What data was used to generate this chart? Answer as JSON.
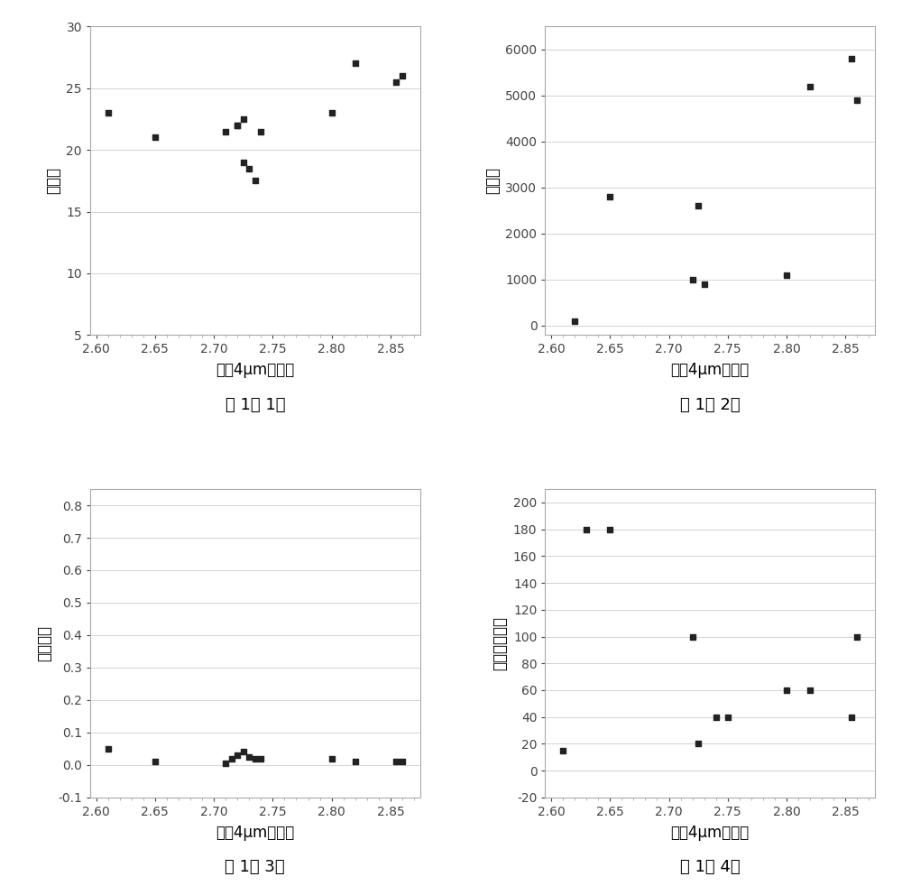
{
  "plot1": {
    "x": [
      2.61,
      2.65,
      2.71,
      2.72,
      2.725,
      2.73,
      2.735,
      2.74,
      2.72,
      2.725,
      2.8,
      2.82,
      2.855,
      2.86
    ],
    "y": [
      23.0,
      21.0,
      21.5,
      22.0,
      19.0,
      18.5,
      17.5,
      21.5,
      22.0,
      22.5,
      23.0,
      27.0,
      25.5,
      26.0
    ],
    "xlabel": "小于4μm分维数",
    "ylabel": "孔隙度",
    "caption": "图 1（ 1）",
    "xlim": [
      2.595,
      2.875
    ],
    "ylim": [
      5,
      30
    ],
    "yticks": [
      5,
      10,
      15,
      20,
      25,
      30
    ],
    "xticks": [
      2.6,
      2.65,
      2.7,
      2.75,
      2.8,
      2.85
    ]
  },
  "plot2": {
    "x": [
      2.62,
      2.65,
      2.72,
      2.725,
      2.73,
      2.8,
      2.82,
      2.855,
      2.86
    ],
    "y": [
      100,
      2800,
      1000,
      2600,
      900,
      1100,
      5200,
      5800,
      4900
    ],
    "xlabel": "小于4μm分维数",
    "ylabel": "渗透率",
    "caption": "图 1（ 2）",
    "xlim": [
      2.595,
      2.875
    ],
    "ylim": [
      -200,
      6500
    ],
    "yticks": [
      0,
      1000,
      2000,
      3000,
      4000,
      5000,
      6000
    ],
    "xticks": [
      2.6,
      2.65,
      2.7,
      2.75,
      2.8,
      2.85
    ]
  },
  "plot3": {
    "x": [
      2.61,
      2.65,
      2.71,
      2.715,
      2.72,
      2.725,
      2.73,
      2.735,
      2.74,
      2.8,
      2.82,
      2.855,
      2.86
    ],
    "y": [
      0.05,
      0.01,
      0.005,
      0.02,
      0.03,
      0.04,
      0.025,
      0.02,
      0.02,
      0.02,
      0.01,
      0.01,
      0.01
    ],
    "xlabel": "小于4μm分维数",
    "ylabel": "门槛压力",
    "caption": "图 1（ 3）",
    "xlim": [
      2.595,
      2.875
    ],
    "ylim": [
      -0.1,
      0.85
    ],
    "yticks": [
      -0.1,
      0.0,
      0.1,
      0.2,
      0.3,
      0.4,
      0.5,
      0.6,
      0.7,
      0.8
    ],
    "xticks": [
      2.6,
      2.65,
      2.7,
      2.75,
      2.8,
      2.85
    ]
  },
  "plot4": {
    "x": [
      2.61,
      2.63,
      2.65,
      2.72,
      2.725,
      2.74,
      2.75,
      2.8,
      2.82,
      2.855,
      2.86
    ],
    "y": [
      15,
      180,
      180,
      100,
      20,
      40,
      40,
      60,
      60,
      40,
      100
    ],
    "xlabel": "小于4μm分维数",
    "ylabel": "最大孔隙半径",
    "caption": "图 1（ 4）",
    "xlim": [
      2.595,
      2.875
    ],
    "ylim": [
      -20,
      210
    ],
    "yticks": [
      -20,
      0,
      20,
      40,
      60,
      80,
      100,
      120,
      140,
      160,
      180,
      200
    ],
    "xticks": [
      2.6,
      2.65,
      2.7,
      2.75,
      2.8,
      2.85
    ]
  },
  "marker": "s",
  "marker_color": "#222222",
  "marker_size": 5,
  "bg_color": "#ffffff",
  "font_size_label": 12,
  "font_size_caption": 13,
  "font_size_tick": 10
}
